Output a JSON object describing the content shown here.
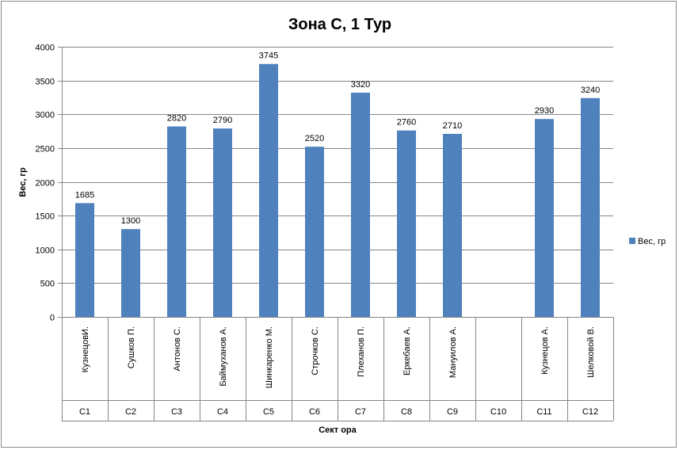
{
  "chart_data": {
    "type": "bar",
    "title": "Зона С, 1 Тур",
    "xlabel": "Сект ора",
    "ylabel": "Вес, гр",
    "ylim": [
      0,
      4000
    ],
    "yticks": [
      0,
      500,
      1000,
      1500,
      2000,
      2500,
      3000,
      3500,
      4000
    ],
    "grid": true,
    "legend_position": "right",
    "categories": [
      {
        "name": "КузнецовИ.",
        "sector": "C1"
      },
      {
        "name": "Сушков П.",
        "sector": "C2"
      },
      {
        "name": "Антонов С.",
        "sector": "C3"
      },
      {
        "name": "Баймуханов А.",
        "sector": "C4"
      },
      {
        "name": "Шинкаренко М.",
        "sector": "C5"
      },
      {
        "name": "Строчков С.",
        "sector": "C6"
      },
      {
        "name": "Плеханов П.",
        "sector": "C7"
      },
      {
        "name": "Еркебаев А.",
        "sector": "C8"
      },
      {
        "name": "Мануилов А.",
        "sector": "C9"
      },
      {
        "name": "",
        "sector": "C10"
      },
      {
        "name": "Кузнецов А.",
        "sector": "C11"
      },
      {
        "name": "Шелковой В.",
        "sector": "C12"
      }
    ],
    "series": [
      {
        "name": "Вес, гр",
        "color": "#4f81bd",
        "values": [
          1685,
          1300,
          2820,
          2790,
          3745,
          2520,
          3320,
          2760,
          2710,
          null,
          2930,
          3240
        ]
      }
    ]
  }
}
